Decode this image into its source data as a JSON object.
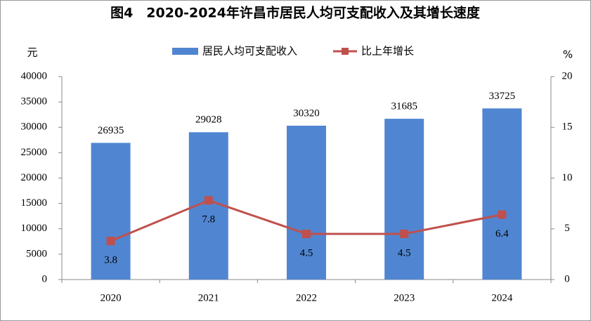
{
  "chart_data": {
    "type": "bar",
    "title": "图4　2020-2024年许昌市居民人均可支配收入及其增长速度",
    "y_label": "元",
    "y2_label": "%",
    "categories": [
      "2020",
      "2021",
      "2022",
      "2023",
      "2024"
    ],
    "series": [
      {
        "name": "居民人均可支配收入",
        "type": "bar",
        "color": "#5086d1",
        "values": [
          26935,
          29028,
          30320,
          31685,
          33725
        ]
      },
      {
        "name": "比上年增长",
        "type": "line",
        "axis": "y2",
        "color": "#c0504d",
        "values": [
          3.8,
          7.8,
          4.5,
          4.5,
          6.4
        ]
      }
    ],
    "ylim": [
      0,
      40000
    ],
    "yticks": [
      0,
      5000,
      10000,
      15000,
      20000,
      25000,
      30000,
      35000,
      40000
    ],
    "y2lim": [
      0,
      20
    ],
    "y2ticks": [
      0,
      5,
      10,
      15,
      20
    ],
    "grid": false,
    "legend": "top"
  }
}
